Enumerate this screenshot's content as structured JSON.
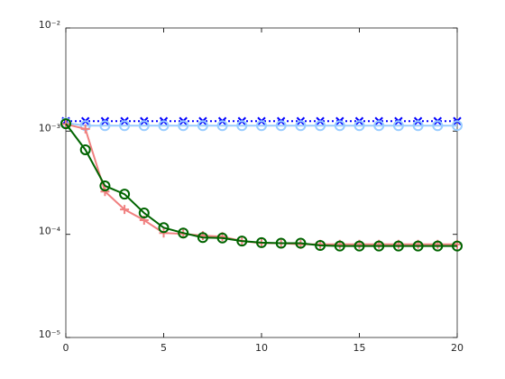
{
  "chart_data": {
    "type": "line",
    "log_y": true,
    "x": [
      0,
      1,
      2,
      3,
      4,
      5,
      6,
      7,
      8,
      9,
      10,
      11,
      12,
      13,
      14,
      15,
      16,
      17,
      18,
      19,
      20
    ],
    "xlim": [
      0,
      20
    ],
    "xticks": [
      0,
      5,
      10,
      15,
      20
    ],
    "ylim": [
      1e-05,
      0.01
    ],
    "yticks": [
      {
        "value": 1e-05,
        "label": "10⁻⁵"
      },
      {
        "value": 0.0001,
        "label": "10⁻⁴"
      },
      {
        "value": 0.001,
        "label": "10⁻³"
      },
      {
        "value": 0.01,
        "label": "10⁻²"
      }
    ],
    "series": [
      {
        "color": "#0000ff",
        "marker": "x",
        "dash": "dotted",
        "values": [
          0.00125,
          0.00125,
          0.00125,
          0.00125,
          0.00125,
          0.00125,
          0.00125,
          0.00125,
          0.00125,
          0.00125,
          0.00125,
          0.00125,
          0.00125,
          0.00125,
          0.00125,
          0.00125,
          0.00125,
          0.00125,
          0.00125,
          0.00125,
          0.00125
        ]
      },
      {
        "color": "#99ccff",
        "marker": "o",
        "dash": "solid",
        "values": [
          0.0012,
          0.00113,
          0.00113,
          0.00113,
          0.00113,
          0.00113,
          0.00113,
          0.00113,
          0.00113,
          0.00113,
          0.00113,
          0.00113,
          0.00113,
          0.00113,
          0.00113,
          0.00113,
          0.00113,
          0.00113,
          0.00113,
          0.00113,
          0.00113
        ]
      },
      {
        "color": "#f08080",
        "marker": "+",
        "dash": "solid",
        "values": [
          0.00117,
          0.00105,
          0.00026,
          0.000174,
          0.000137,
          0.000103,
          0.000101,
          9.7e-05,
          9.5e-05,
          8.6e-05,
          8.2e-05,
          8.2e-05,
          8e-05,
          8e-05,
          8e-05,
          8e-05,
          8e-05,
          8e-05,
          8e-05,
          8e-05,
          8e-05
        ]
      },
      {
        "color": "#006400",
        "marker": "o",
        "dash": "solid",
        "values": [
          0.00118,
          0.00066,
          0.000295,
          0.000245,
          0.000161,
          0.000116,
          0.000103,
          9.3e-05,
          9.2e-05,
          8.6e-05,
          8.3e-05,
          8.2e-05,
          8.2e-05,
          7.8e-05,
          7.7e-05,
          7.7e-05,
          7.7e-05,
          7.7e-05,
          7.7e-05,
          7.7e-05,
          7.7e-05
        ]
      }
    ]
  }
}
